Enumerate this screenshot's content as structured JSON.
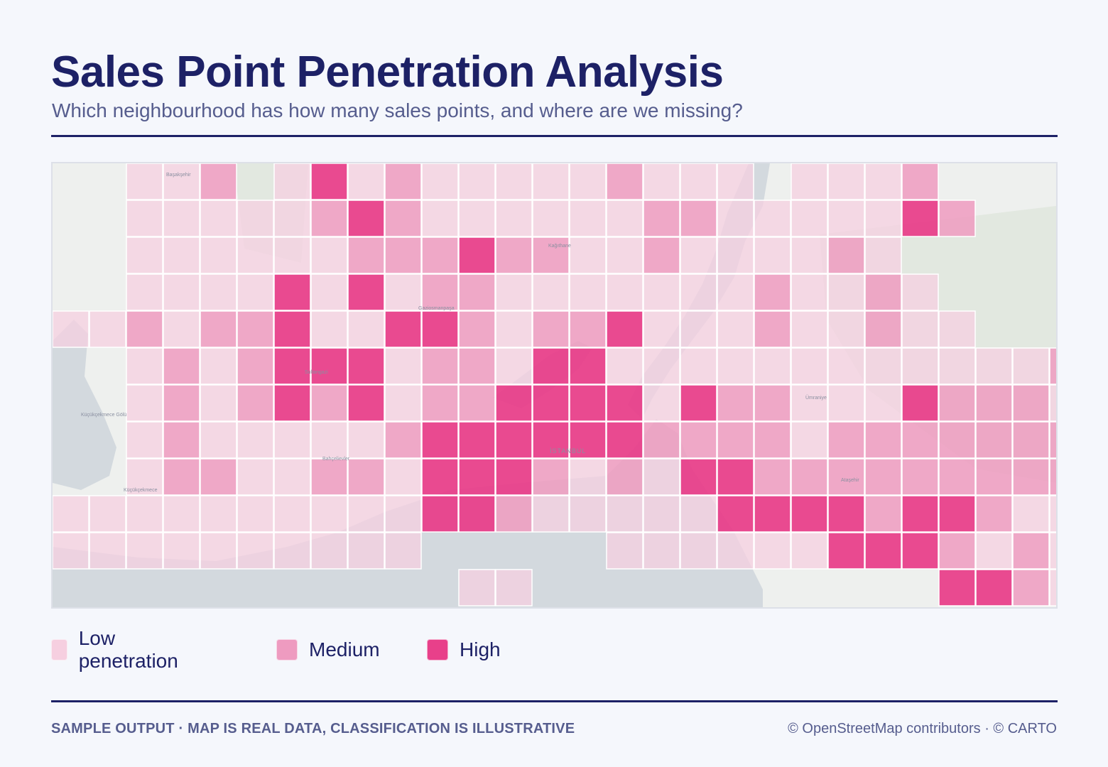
{
  "header": {
    "title": "Sales Point Penetration Analysis",
    "subtitle": "Which neighbourhood has how many sales points, and where are we missing?"
  },
  "map": {
    "place_labels": [
      "Başakşehir",
      "Gaziosmanpaşa",
      "Kağıthane",
      "Sultangazi",
      "Bahçelievler",
      "Küçükçekmece",
      "İSTANBUL",
      "Ataşehir",
      "Ümraniye",
      "Küçükçekmece Gölü"
    ],
    "colors": {
      "low": "#f6cfe0",
      "medium": "#ee9bc0",
      "high": "#e8408a",
      "water": "#d3d9de",
      "land": "#eef0ee",
      "green": "#e2e8e0"
    },
    "grid_rows": [
      "..LLM.LHLMLLLLLMLLL.LLLM..........",
      "..LLLLLMHMLLLLLLMMLLLLLHM.........",
      "..LLLLLLMMMHMMLLMLLLLML...........",
      "..LLLLHLHLMMLLLLLLLMLLML..........",
      "LLMLMMHLLHHMLMMHLLLMLLMLL.........",
      "..LMLMHHHLMMLHHLLLLLLLLLLLLMM.....",
      "..LMLMHMHLMMHHHHLHMMLLLHMMMLMMMM..",
      "..LMLLLLLMHHHHHHMMMMLMMMMMMMMMMMMM",
      "..LMMLLMMLHHHMLMLHHMMMMMMMMMMLLL..",
      "LLLLLLLLLLHHMLLLLLHHHHMHHMLLLLLLL.",
      "LLLLLLLLLL.....LLLLLLHHHMLMLLL....",
      "...........LL...........HHMLLLLLL."
    ]
  },
  "legend": [
    {
      "label": "Low penetration",
      "level": "low"
    },
    {
      "label": "Medium",
      "level": "medium"
    },
    {
      "label": "High",
      "level": "high"
    }
  ],
  "footer": {
    "note": "SAMPLE OUTPUT · MAP IS REAL DATA, CLASSIFICATION IS ILLUSTRATIVE",
    "attribution": "© OpenStreetMap contributors · © CARTO"
  }
}
